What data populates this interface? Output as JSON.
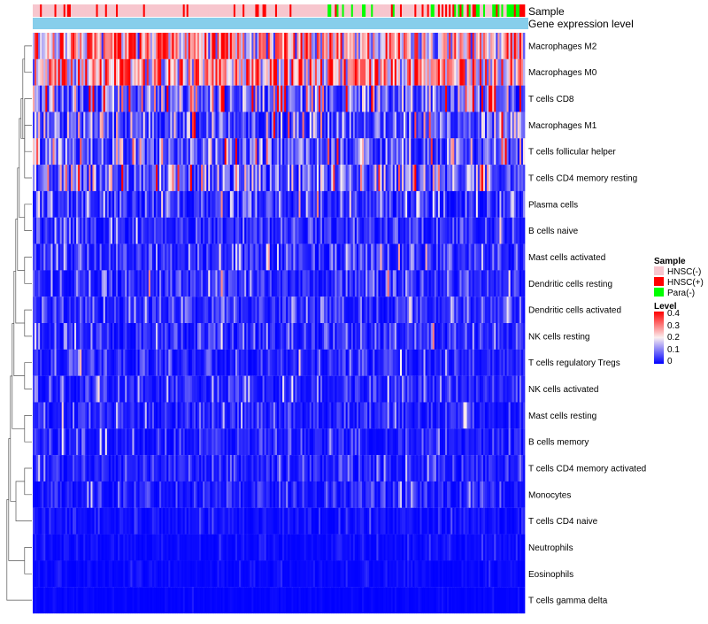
{
  "chart_data": {
    "type": "heatmap",
    "title": "",
    "column_annotations": [
      {
        "name": "Sample",
        "colors": {
          "HNSC(-)": "#f7c6ce",
          "HNSC(+)": "#ff0000",
          "Para(-)": "#00ff00"
        }
      },
      {
        "name": "Gene expression level",
        "color": "#87ceeb"
      }
    ],
    "rows": [
      {
        "name": "Macrophages M2",
        "mean": 0.22
      },
      {
        "name": "Macrophages M0",
        "mean": 0.24
      },
      {
        "name": "T cells CD8",
        "mean": 0.11
      },
      {
        "name": "Macrophages M1",
        "mean": 0.09
      },
      {
        "name": "T cells follicular helper",
        "mean": 0.09
      },
      {
        "name": "T cells CD4 memory resting",
        "mean": 0.1
      },
      {
        "name": "Plasma cells",
        "mean": 0.06
      },
      {
        "name": "B cells naive",
        "mean": 0.04
      },
      {
        "name": "Mast cells activated",
        "mean": 0.05
      },
      {
        "name": "Dendritic cells resting",
        "mean": 0.045
      },
      {
        "name": "Dendritic cells activated",
        "mean": 0.045
      },
      {
        "name": "NK cells resting",
        "mean": 0.04
      },
      {
        "name": "T cells regulatory  Tregs",
        "mean": 0.035
      },
      {
        "name": "NK cells activated",
        "mean": 0.035
      },
      {
        "name": "Mast cells resting",
        "mean": 0.035
      },
      {
        "name": "B cells memory",
        "mean": 0.03
      },
      {
        "name": "T cells CD4 memory activated",
        "mean": 0.03
      },
      {
        "name": "Monocytes",
        "mean": 0.03
      },
      {
        "name": "T cells CD4 naive",
        "mean": 0.015
      },
      {
        "name": "Neutrophils",
        "mean": 0.01
      },
      {
        "name": "Eosinophils",
        "mean": 0.008
      },
      {
        "name": "T cells gamma delta",
        "mean": 0.004
      }
    ],
    "n_samples": 272,
    "sample_groups": {
      "HNSC(-)": 0.78,
      "HNSC(+)": 0.12,
      "Para(-)": 0.1
    },
    "color_scale": {
      "min": 0,
      "max": 0.4,
      "stops": [
        {
          "value": 0,
          "color": "#0000ff"
        },
        {
          "value": 0.2,
          "color": "#fbeff0"
        },
        {
          "value": 0.4,
          "color": "#ff0000"
        }
      ]
    },
    "legend": {
      "position": "right",
      "sample": {
        "title": "Sample",
        "items": [
          {
            "label": "HNSC(-)",
            "color": "#f7c6ce"
          },
          {
            "label": "HNSC(+)",
            "color": "#ff0000"
          },
          {
            "label": "Para(-)",
            "color": "#00ff00"
          }
        ]
      },
      "level": {
        "title": "Level",
        "ticks": [
          {
            "value": 0.4,
            "label": "0.4"
          },
          {
            "value": 0.3,
            "label": "0.3"
          },
          {
            "value": 0.2,
            "label": "0.2"
          },
          {
            "value": 0.1,
            "label": "0.1"
          },
          {
            "value": 0,
            "label": "0"
          }
        ]
      }
    },
    "dendrogram": {
      "merges": [
        [
          0,
          1
        ],
        [
          12,
          13
        ],
        [
          14,
          15
        ],
        [
          16,
          17
        ],
        [
          10,
          11
        ],
        [
          3,
          4
        ],
        [
          19,
          20
        ],
        [
          8,
          9
        ],
        [
          2,
          5
        ],
        [
          6,
          7
        ],
        [
          18,
          25
        ]
      ]
    }
  }
}
